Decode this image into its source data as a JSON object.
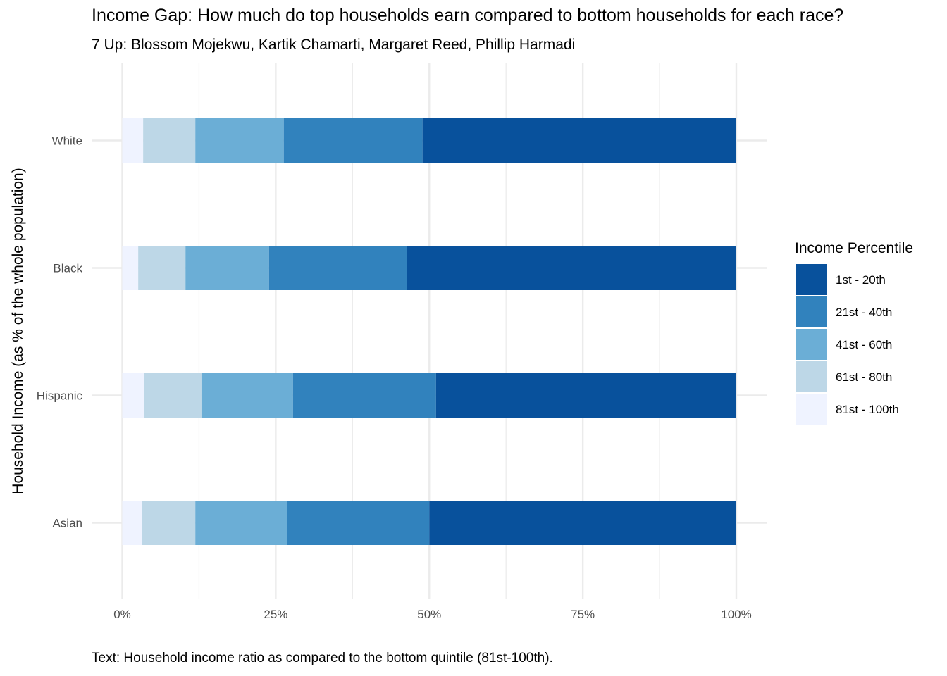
{
  "chart_data": {
    "type": "bar",
    "orientation": "horizontal",
    "stacked": true,
    "title": "Income Gap: How much do top households earn compared to bottom households for each race?",
    "subtitle": "7 Up: Blossom Mojekwu, Kartik Chamarti, Margaret Reed, Phillip Harmadi",
    "caption": "Text: Household income ratio as compared to the bottom quintile (81st-100th).",
    "ylabel": "Household Income (as % of the whole population)",
    "xlabel": "",
    "xlim": [
      0,
      1
    ],
    "x_ticks": [
      "0%",
      "25%",
      "50%",
      "75%",
      "100%"
    ],
    "categories": [
      "White",
      "Black",
      "Hispanic",
      "Asian"
    ],
    "legend": {
      "title": "Income Percentile",
      "position": "right"
    },
    "grid": true,
    "series": [
      {
        "name": "81st - 100th",
        "color": "#eff3ff",
        "values": [
          0.034,
          0.026,
          0.036,
          0.032
        ]
      },
      {
        "name": "61st - 80th",
        "color": "#bdd7e7",
        "values": [
          0.085,
          0.077,
          0.093,
          0.087
        ]
      },
      {
        "name": "41st - 60th",
        "color": "#6baed6",
        "values": [
          0.144,
          0.136,
          0.149,
          0.15
        ]
      },
      {
        "name": "21st - 40th",
        "color": "#3182bd",
        "values": [
          0.226,
          0.225,
          0.233,
          0.231
        ]
      },
      {
        "name": "1st - 20th",
        "color": "#08519c",
        "values": [
          0.511,
          0.536,
          0.489,
          0.5
        ]
      }
    ],
    "legend_order": [
      "1st - 20th",
      "21st - 40th",
      "41st - 60th",
      "61st - 80th",
      "81st - 100th"
    ]
  }
}
